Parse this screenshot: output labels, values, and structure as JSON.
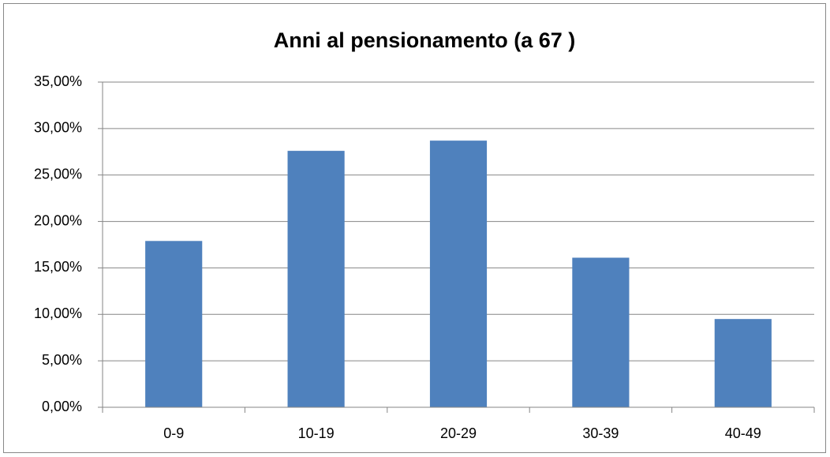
{
  "chart_data": {
    "type": "bar",
    "title": "Anni al pensionamento (a 67 )",
    "categories": [
      "0-9",
      "10-19",
      "20-29",
      "30-39",
      "40-49"
    ],
    "values": [
      17.9,
      27.6,
      28.7,
      16.1,
      9.5
    ],
    "color": "#4f81bd",
    "ylim": [
      0,
      35
    ],
    "yticks": [
      {
        "value": 0,
        "label": "0,00%"
      },
      {
        "value": 5,
        "label": "5,00%"
      },
      {
        "value": 10,
        "label": "10,00%"
      },
      {
        "value": 15,
        "label": "15,00%"
      },
      {
        "value": 20,
        "label": "20,00%"
      },
      {
        "value": 25,
        "label": "25,00%"
      },
      {
        "value": 30,
        "label": "30,00%"
      },
      {
        "value": 35,
        "label": "35,00%"
      }
    ],
    "grid": true
  }
}
